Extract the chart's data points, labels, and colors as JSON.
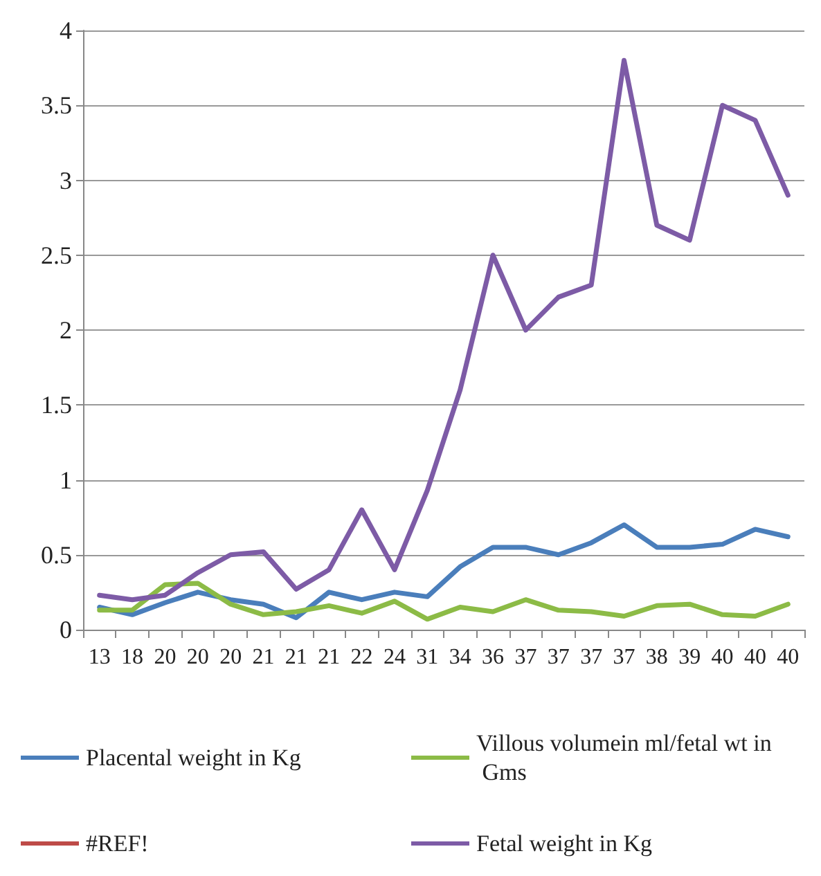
{
  "chart_data": {
    "type": "line",
    "categories": [
      "13",
      "18",
      "20",
      "20",
      "20",
      "21",
      "21",
      "21",
      "22",
      "24",
      "31",
      "34",
      "36",
      "37",
      "37",
      "37",
      "37",
      "38",
      "39",
      "40",
      "40",
      "40"
    ],
    "series": [
      {
        "name": "Placental weight in Kg",
        "color": "#4a7ebb",
        "values": [
          0.15,
          0.1,
          0.18,
          0.25,
          0.2,
          0.17,
          0.08,
          0.25,
          0.2,
          0.25,
          0.22,
          0.42,
          0.55,
          0.55,
          0.5,
          0.58,
          0.7,
          0.55,
          0.55,
          0.57,
          0.67,
          0.62
        ]
      },
      {
        "name": "Villous volumein ml/fetal wt in Gms",
        "color": "#8cbb46",
        "values": [
          0.13,
          0.13,
          0.3,
          0.31,
          0.17,
          0.1,
          0.12,
          0.16,
          0.11,
          0.19,
          0.07,
          0.15,
          0.12,
          0.2,
          0.13,
          0.12,
          0.09,
          0.16,
          0.17,
          0.1,
          0.09,
          0.17
        ]
      },
      {
        "name": "#REF!",
        "color": "#be4b48",
        "values": [
          null,
          null,
          null,
          null,
          null,
          null,
          null,
          null,
          null,
          null,
          null,
          null,
          null,
          null,
          null,
          null,
          null,
          null,
          null,
          null,
          null,
          null
        ]
      },
      {
        "name": "Fetal weight in Kg",
        "color": "#7d5ba6",
        "values": [
          0.23,
          0.2,
          0.23,
          0.38,
          0.5,
          0.52,
          0.27,
          0.4,
          0.8,
          0.4,
          0.93,
          1.6,
          2.5,
          2.0,
          2.22,
          2.3,
          3.8,
          2.7,
          2.6,
          3.5,
          3.4,
          2.9
        ]
      }
    ],
    "ylim": [
      0,
      4
    ],
    "yticks": [
      0,
      0.5,
      1,
      1.5,
      2,
      2.5,
      3,
      3.5,
      4
    ],
    "grid": "y",
    "legend": "bottom",
    "marker": "none",
    "line_style": "solid"
  }
}
